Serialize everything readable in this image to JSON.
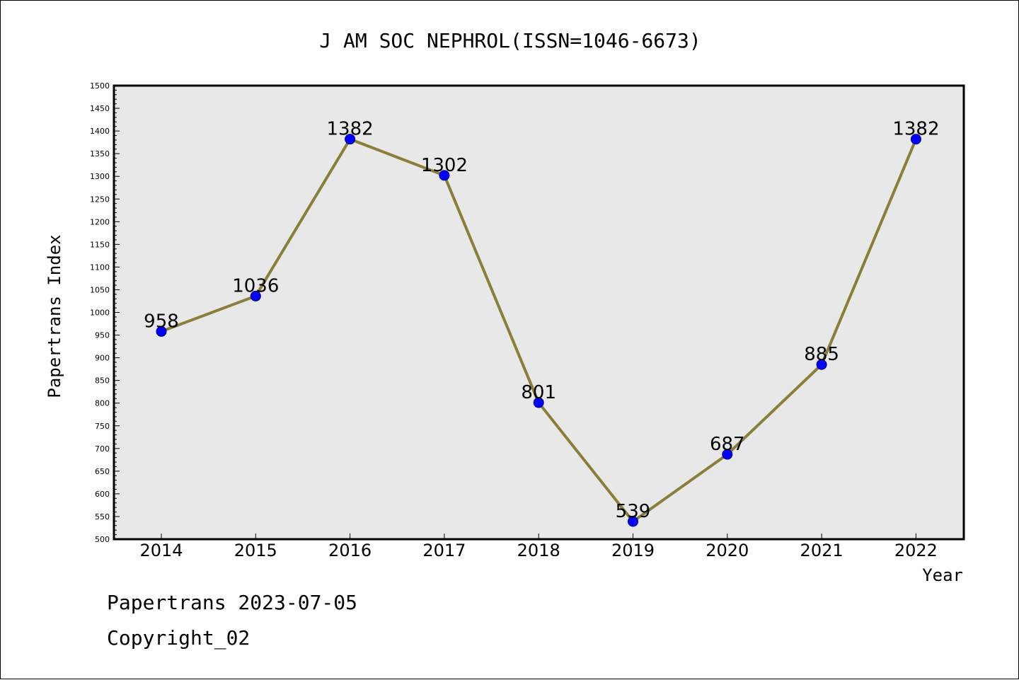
{
  "chart_data": {
    "type": "line",
    "title": "J AM SOC NEPHROL(ISSN=1046-6673)",
    "xlabel": "Year",
    "ylabel": "Papertrans Index",
    "categories": [
      "2014",
      "2015",
      "2016",
      "2017",
      "2018",
      "2019",
      "2020",
      "2021",
      "2022"
    ],
    "series": [
      {
        "values": [
          958,
          1036,
          1382,
          1302,
          801,
          539,
          687,
          885,
          1382
        ],
        "line_color": "#8b7d3a",
        "marker_color": "#0000ff"
      }
    ],
    "data_labels": [
      "958",
      "1036",
      "1382",
      "1302",
      "801",
      "539",
      "687",
      "885",
      "1382"
    ],
    "ylim": [
      500,
      1500
    ],
    "yticks": [
      500,
      550,
      600,
      650,
      700,
      750,
      800,
      850,
      900,
      950,
      1000,
      1050,
      1100,
      1150,
      1200,
      1250,
      1300,
      1350,
      1400,
      1450,
      1500
    ],
    "ytick_labels": [
      "500",
      "550",
      "600",
      "650",
      "700",
      "750",
      "800",
      "850",
      "900",
      "950",
      "1000",
      "1050",
      "1100",
      "1150",
      "1200",
      "1250",
      "1300",
      "1350",
      "1400",
      "1450",
      "1500"
    ],
    "grid": false,
    "legend": "none",
    "plot_background": "#e8e8e8"
  },
  "footer": {
    "line1": "Papertrans 2023-07-05",
    "line2": "Copyright_02"
  }
}
